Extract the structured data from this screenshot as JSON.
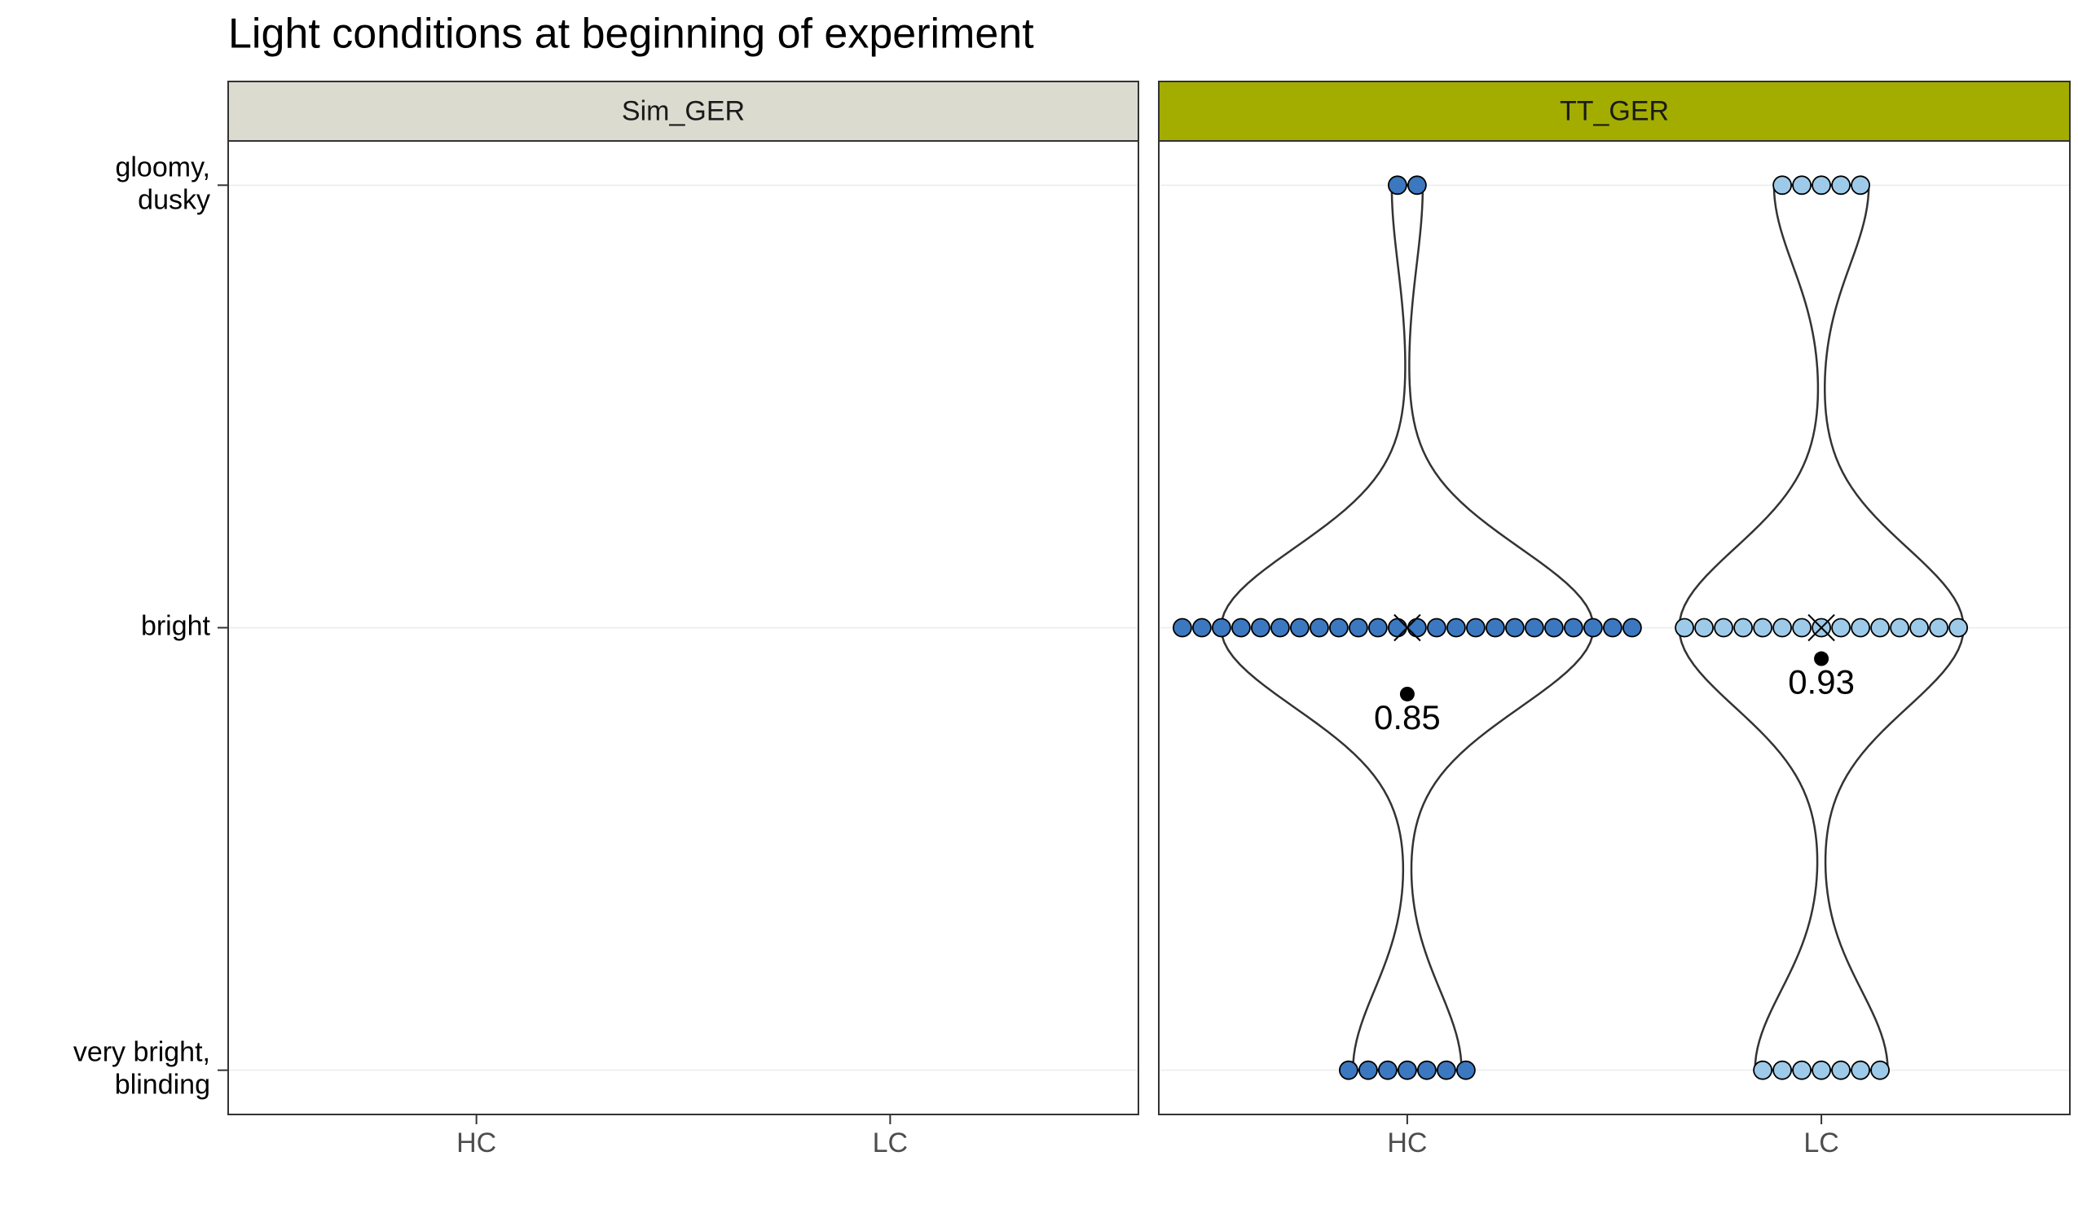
{
  "chart_data": {
    "type": "violin",
    "title": "Light conditions at beginning of experiment",
    "categories": [
      "HC",
      "LC"
    ],
    "ylim": [
      -0.1,
      2.1
    ],
    "yticks": [
      {
        "value": 0,
        "label": "very bright,\nblinding"
      },
      {
        "value": 1,
        "label": "bright"
      },
      {
        "value": 2,
        "label": "gloomy,\ndusky"
      }
    ],
    "grid": true,
    "facets": [
      {
        "name": "Sim_GER",
        "strip_color": "#dcdbd0",
        "series": []
      },
      {
        "name": "TT_GER",
        "strip_color": "#a3ad00",
        "series": [
          {
            "name": "HC",
            "color": "#3b78c0",
            "counts": [
              7,
              24,
              2
            ],
            "mean": 0.85
          },
          {
            "name": "LC",
            "color": "#9ecae9",
            "counts": [
              7,
              15,
              5
            ],
            "mean": 0.93
          }
        ]
      }
    ]
  }
}
